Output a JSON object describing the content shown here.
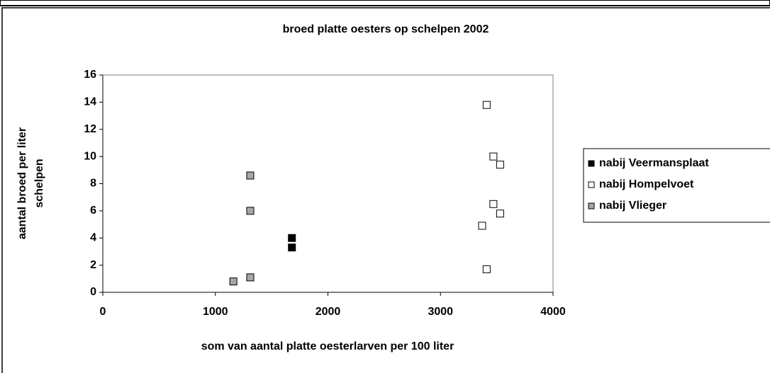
{
  "chart_data": {
    "type": "scatter",
    "title": "broed platte oesters op schelpen 2002",
    "xlabel": "som van aantal platte oesterlarven per 100 liter",
    "ylabel": [
      "aantal broed per liter",
      "schelpen"
    ],
    "xlim": [
      0,
      4000
    ],
    "xticks": [
      0,
      1000,
      2000,
      3000,
      4000
    ],
    "ylim": [
      0,
      16
    ],
    "yticks": [
      0,
      2,
      4,
      6,
      8,
      10,
      12,
      14,
      16
    ],
    "grid": false,
    "legend": "right",
    "series": [
      {
        "name": "nabij Veermansplaat",
        "color": "#000000",
        "x": [
          1680,
          1680
        ],
        "values": [
          4.0,
          3.3
        ]
      },
      {
        "name": "nabij Hompelvoet",
        "color": "#ffffff",
        "x": [
          3410,
          3470,
          3530,
          3470,
          3530,
          3370,
          3410
        ],
        "values": [
          13.8,
          10.0,
          9.4,
          6.5,
          5.8,
          4.9,
          1.7
        ]
      },
      {
        "name": "nabij Vlieger",
        "color": "#a6a6a6",
        "x": [
          1310,
          1310,
          1310,
          1160
        ],
        "values": [
          8.6,
          6.0,
          1.1,
          0.8
        ]
      }
    ]
  }
}
